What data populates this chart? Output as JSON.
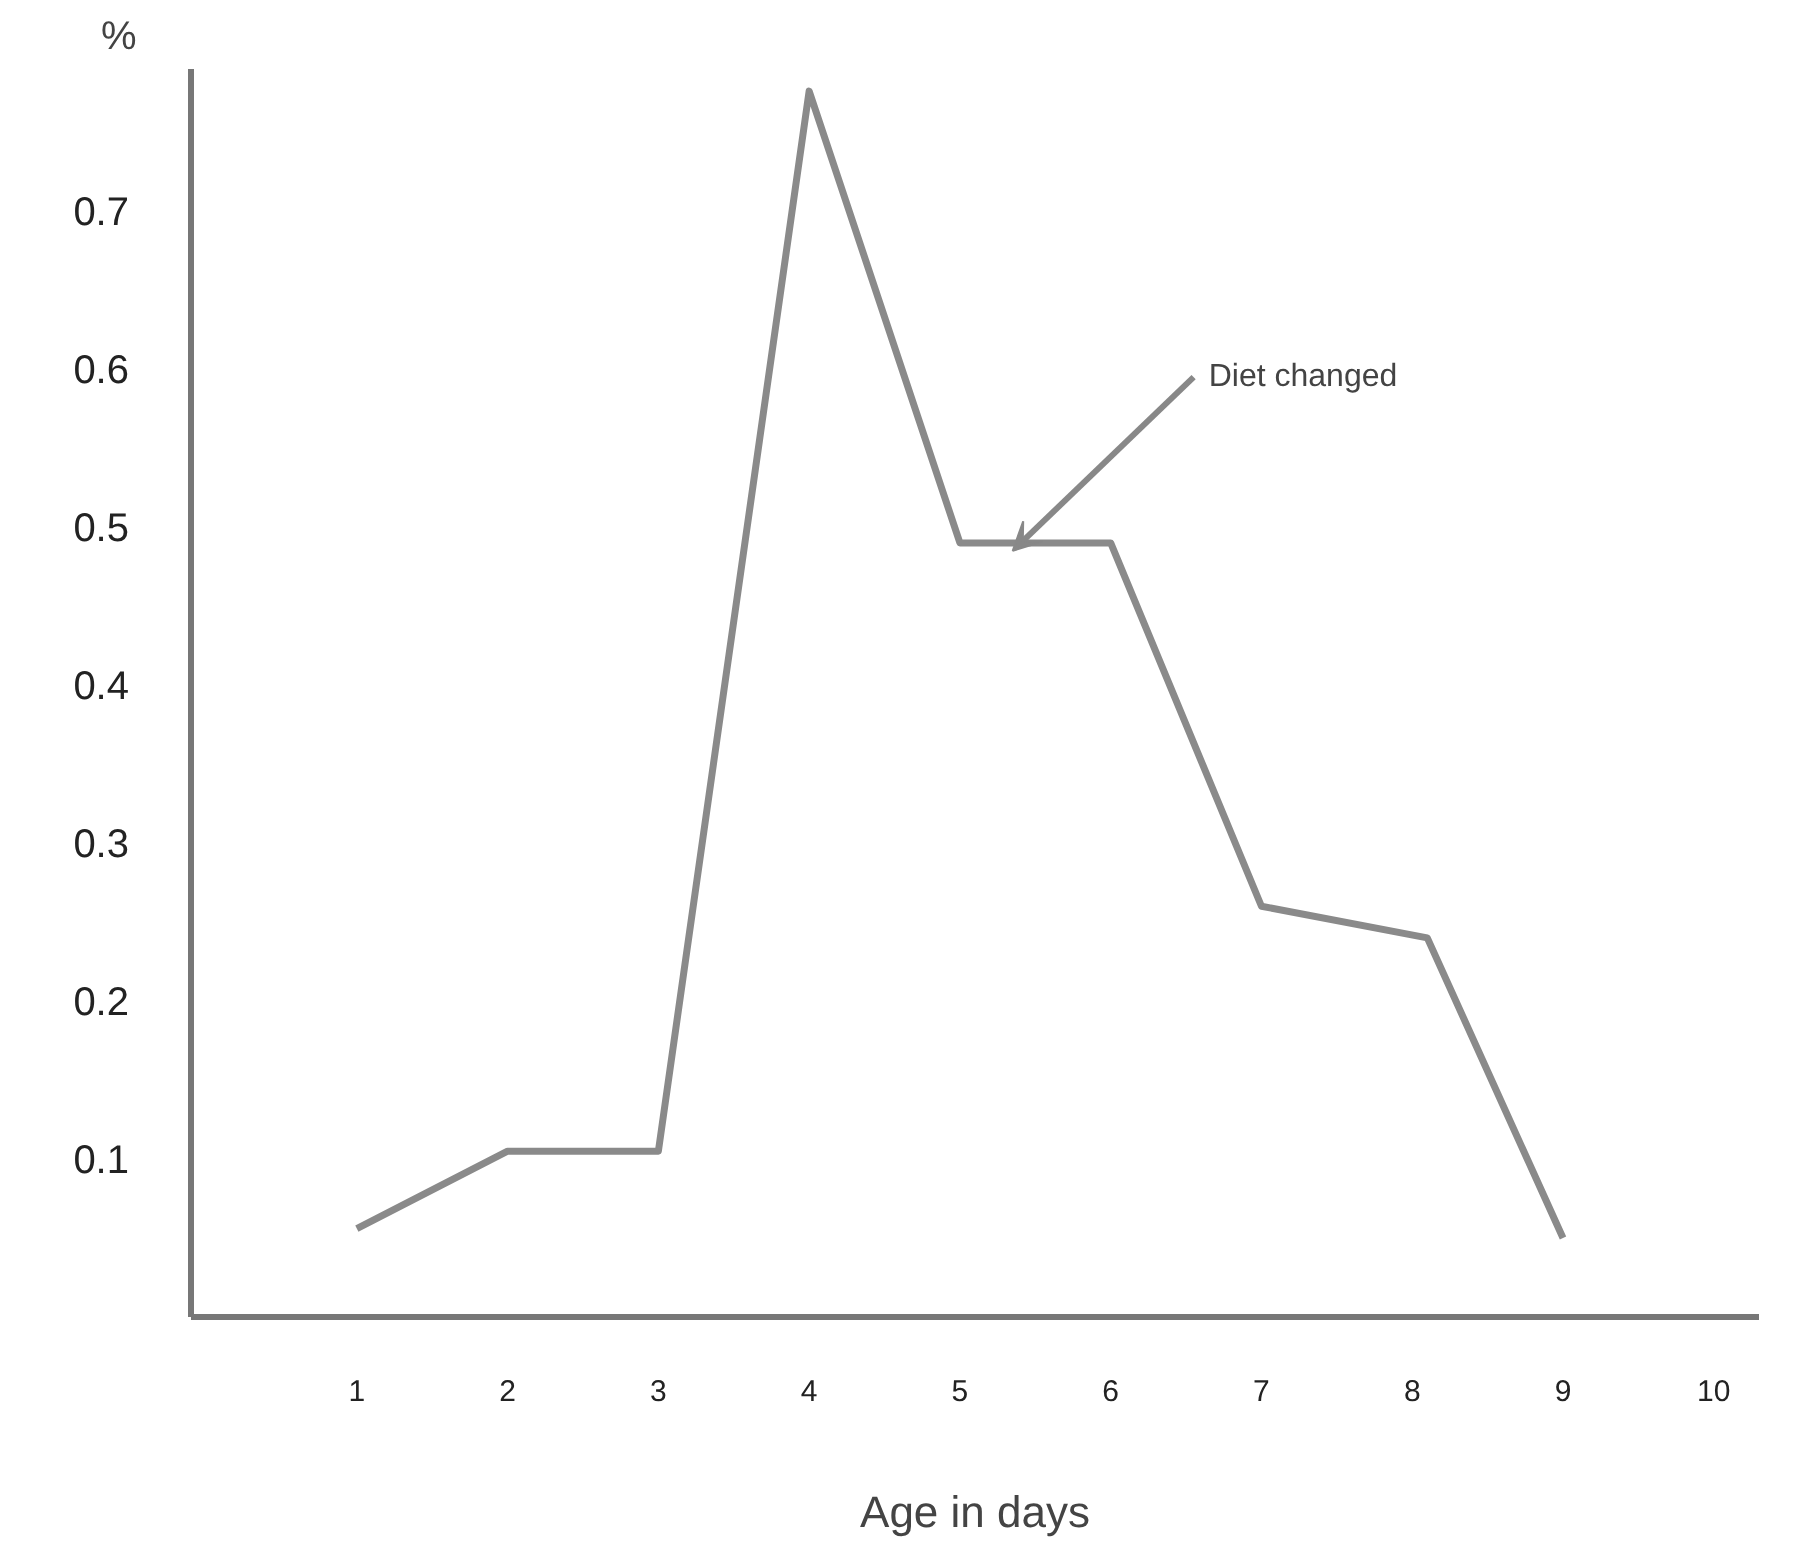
{
  "chart_data": {
    "type": "line",
    "xlabel": "Age in days",
    "ylabel": "%",
    "x": [
      1,
      2,
      3,
      4,
      5,
      6,
      7,
      8.1,
      9
    ],
    "series": [
      {
        "color": "#8a8a8a",
        "values": [
          0.056,
          0.105,
          0.105,
          0.776,
          0.49,
          0.49,
          0.26,
          0.24,
          0.05
        ]
      }
    ],
    "xlim": [
      -0.1,
      10.3
    ],
    "ylim": [
      0,
      0.79
    ],
    "xticks": [
      1,
      2,
      3,
      4,
      5,
      6,
      7,
      8,
      9,
      10
    ],
    "yticks": [
      0.1,
      0.2,
      0.3,
      0.4,
      0.5,
      0.6,
      0.7
    ],
    "annotations": [
      {
        "text": "Diet changed",
        "x": 5.35,
        "y": 0.485
      }
    ],
    "line_style": "solid"
  }
}
